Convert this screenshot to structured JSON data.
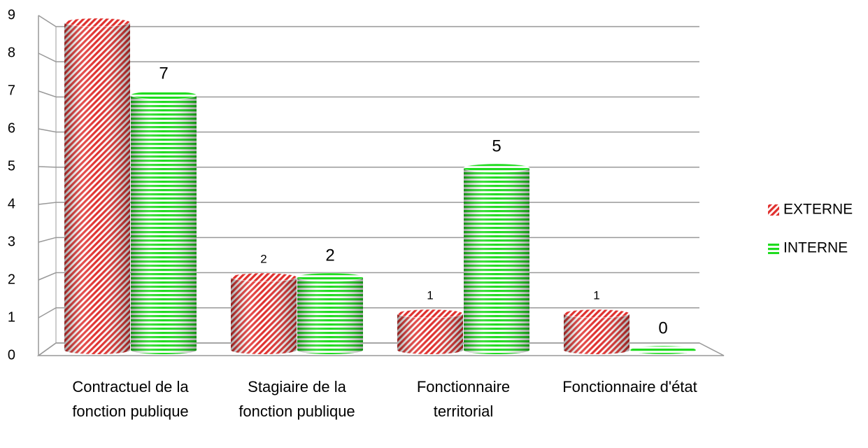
{
  "chart_data": {
    "type": "bar3d",
    "categories": [
      "Contractuel de la fonction publique",
      "Stagiaire de la fonction publique",
      "Fonctionnaire territorial",
      "Fonctionnaire d'état"
    ],
    "series": [
      {
        "name": "EXTERNE",
        "color": "#e0302e",
        "values": [
          9,
          2,
          1,
          1
        ],
        "value_labels": [
          null,
          "2",
          "1",
          "1"
        ]
      },
      {
        "name": "INTERNE",
        "color": "#1fdc1f",
        "values": [
          7,
          2,
          5,
          0
        ]
      }
    ],
    "ylim": [
      0,
      9
    ],
    "yticks": [
      0,
      1,
      2,
      3,
      4,
      5,
      6,
      7,
      8,
      9
    ],
    "grid": true,
    "legend": "right"
  }
}
